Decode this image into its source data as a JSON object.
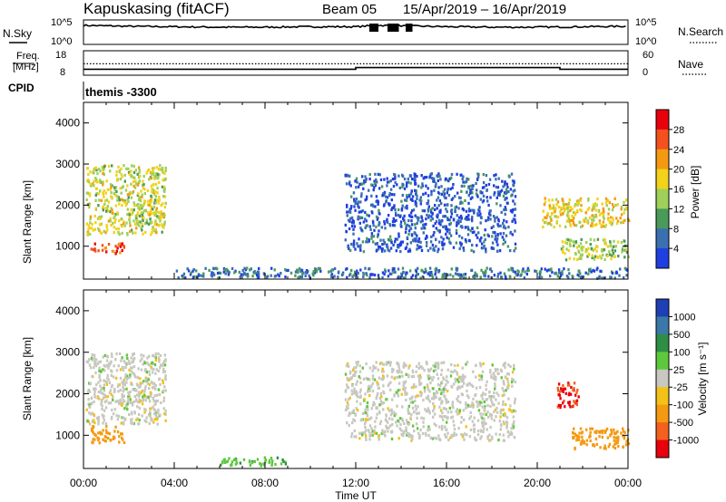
{
  "header": {
    "title": "Kapuskasing (fitACF)",
    "beam": "Beam 05",
    "date_range": "15/Apr/2019 – 16/Apr/2019"
  },
  "nsky_panel": {
    "left_label": "N.Sky",
    "left_ticks": [
      "10^5",
      "10^0"
    ],
    "right_ticks": [
      "10^5",
      "10^0"
    ],
    "right_label": "N.Search"
  },
  "freq_panel": {
    "left_label_1": "Freq.",
    "left_label_2": "[MHz]",
    "left_ticks": [
      "18",
      "8"
    ],
    "right_ticks": [
      "60",
      "0"
    ],
    "right_label": "Nave",
    "cpid_label": "CPID",
    "cpid_value": "themis -3300"
  },
  "power_colorbar": {
    "label": "Power [dB]",
    "ticks": [
      "28",
      "24",
      "20",
      "16",
      "12",
      "8",
      "4"
    ],
    "colors": [
      "#e8000c",
      "#f4511e",
      "#f49a12",
      "#f2d21a",
      "#9fd05a",
      "#4a9a5a",
      "#3a6fb0",
      "#1f3fe0"
    ]
  },
  "velocity_colorbar": {
    "label": "Velocity [m s⁻¹]",
    "ticks": [
      "1000",
      "500",
      "100",
      "25",
      "-25",
      "-100",
      "-500",
      "-1000"
    ],
    "colors": [
      "#1f3fb4",
      "#3a78a8",
      "#2f8e45",
      "#5ec83c",
      "#c8c8c0",
      "#f4c118",
      "#f49a12",
      "#f4601e",
      "#e8000c"
    ]
  },
  "axes": {
    "ylabel": "Slant Range [km]",
    "yticks": [
      "4000",
      "3000",
      "2000",
      "1000"
    ],
    "xticks": [
      "00:00",
      "04:00",
      "08:00",
      "12:00",
      "16:00",
      "20:00",
      "00:00"
    ],
    "xlabel": "Time UT"
  },
  "chart_data": [
    {
      "type": "line",
      "title": "N.Sky",
      "x": [
        0,
        2,
        4,
        6,
        8,
        10,
        12,
        13,
        14,
        16,
        18,
        20,
        22,
        24
      ],
      "y_log10": [
        4.2,
        4.0,
        3.9,
        3.8,
        3.8,
        3.9,
        3.9,
        4.2,
        4.1,
        3.9,
        3.8,
        3.8,
        3.9,
        4.0
      ],
      "xlim": [
        0,
        24
      ],
      "ylim_log10": [
        0,
        5
      ]
    },
    {
      "type": "line",
      "series": [
        {
          "name": "Freq.",
          "x": [
            0,
            12,
            21,
            24
          ],
          "y": [
            10,
            11,
            10,
            10
          ]
        },
        {
          "name": "Nave",
          "x": [
            0,
            24
          ],
          "y": [
            29,
            29
          ]
        }
      ],
      "freq_ylim": [
        8,
        18
      ],
      "nave_ylim": [
        0,
        60
      ]
    },
    {
      "type": "heatmap",
      "title": "Power [dB]",
      "xlim": [
        0,
        24
      ],
      "ylim": [
        200,
        4500
      ],
      "regions": [
        {
          "t": [
            0.1,
            3.6
          ],
          "r": [
            1300,
            3000
          ],
          "v": 18
        },
        {
          "t": [
            0.3,
            1.8
          ],
          "r": [
            850,
            1100
          ],
          "v": 28
        },
        {
          "t": [
            4.0,
            24.0
          ],
          "r": [
            250,
            500
          ],
          "v": 8
        },
        {
          "t": [
            11.5,
            19.0
          ],
          "r": [
            900,
            2800
          ],
          "v": 6
        },
        {
          "t": [
            20.2,
            24.0
          ],
          "r": [
            1500,
            2200
          ],
          "v": 20
        },
        {
          "t": [
            21.0,
            24.0
          ],
          "r": [
            700,
            1200
          ],
          "v": 16
        }
      ]
    },
    {
      "type": "heatmap",
      "title": "Velocity [m s⁻¹]",
      "xlim": [
        0,
        24
      ],
      "ylim": [
        200,
        4500
      ],
      "regions": [
        {
          "t": [
            0.1,
            3.6
          ],
          "r": [
            1300,
            3000
          ],
          "v": 0
        },
        {
          "t": [
            0.3,
            1.8
          ],
          "r": [
            850,
            1250
          ],
          "v": -400
        },
        {
          "t": [
            6.0,
            9.0
          ],
          "r": [
            300,
            500
          ],
          "v": 80
        },
        {
          "t": [
            11.5,
            19.0
          ],
          "r": [
            900,
            2800
          ],
          "v": 0
        },
        {
          "t": [
            20.8,
            21.8
          ],
          "r": [
            1700,
            2300
          ],
          "v": -1000
        },
        {
          "t": [
            21.5,
            24.0
          ],
          "r": [
            700,
            1200
          ],
          "v": -150
        }
      ]
    }
  ]
}
